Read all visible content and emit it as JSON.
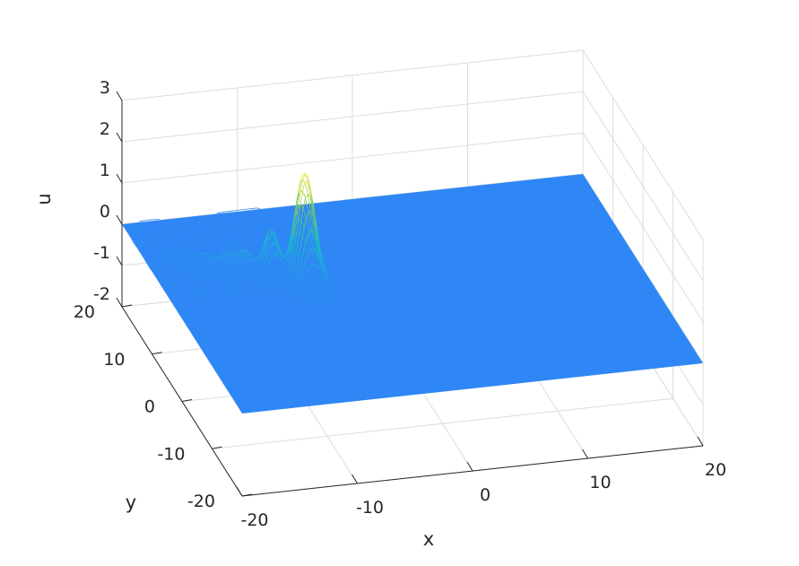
{
  "chart_data": {
    "type": "surface",
    "title": "",
    "xlabel": "x",
    "ylabel": "y",
    "zlabel": "u",
    "xlim": [
      -20,
      20
    ],
    "ylim": [
      -20,
      20
    ],
    "zlim": [
      -2,
      3
    ],
    "xticks": [
      -20,
      -10,
      0,
      10,
      20
    ],
    "yticks": [
      -20,
      -10,
      0,
      10,
      20
    ],
    "zticks": [
      -2,
      -1,
      0,
      1,
      2,
      3
    ],
    "grid": true,
    "colormap": "parula",
    "baseline_value": 0,
    "main_peak": {
      "x": -8,
      "y": 5,
      "u": 2.6
    },
    "tail_peaks": [
      {
        "x": -10.5,
        "y": 6.5,
        "u": 1.1
      },
      {
        "x": -12.5,
        "y": 7.5,
        "u": 0.6
      },
      {
        "x": -14,
        "y": 8.5,
        "u": 0.4
      },
      {
        "x": -15.5,
        "y": 9.5,
        "u": 0.3
      },
      {
        "x": -17,
        "y": 10.5,
        "u": 0.2
      }
    ],
    "colors": {
      "flat": "#2f87f5",
      "peak": "#f7e22a"
    }
  }
}
